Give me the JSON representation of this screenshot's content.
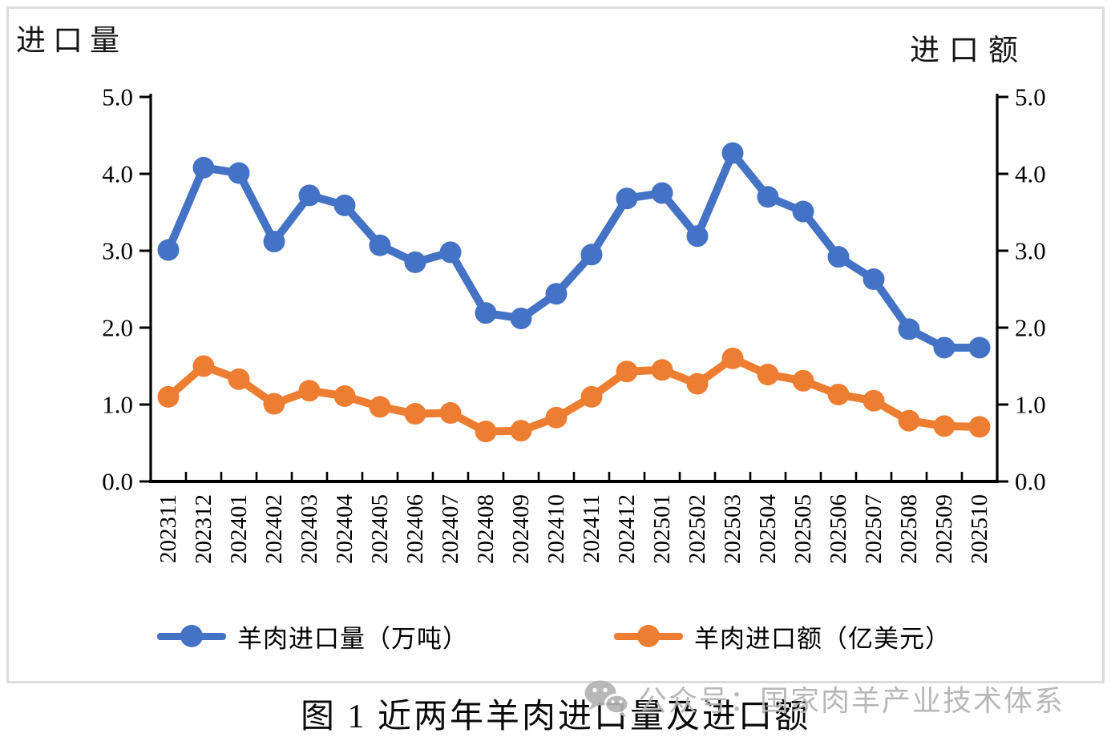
{
  "page": {
    "caption": "图 1 近两年羊肉进口量及进口额",
    "watermark_text": "公众号：国家肉羊产业技术体系",
    "watermark_icon": "wechat-icon"
  },
  "colors": {
    "volume_series": "#4472C4",
    "value_series": "#ED7D31",
    "axis": "#000000",
    "frame_border": "#dcdcdc",
    "watermark": "#b3b3b3",
    "text": "#161616"
  },
  "chart_data": {
    "type": "line",
    "title": "图 1 近两年羊肉进口量及进口额",
    "categories": [
      "202311",
      "202312",
      "202401",
      "202402",
      "202403",
      "202404",
      "202405",
      "202406",
      "202407",
      "202408",
      "202409",
      "202410",
      "202411",
      "202412",
      "202501",
      "202502",
      "202503",
      "202504",
      "202505",
      "202506",
      "202507",
      "202508",
      "202509",
      "202510"
    ],
    "series": [
      {
        "id": "volume",
        "name": "羊肉进口量（万吨）",
        "axis": "left",
        "color": "#4472C4",
        "values": [
          3.01,
          4.08,
          4.01,
          3.12,
          3.72,
          3.59,
          3.07,
          2.85,
          2.98,
          2.19,
          2.12,
          2.44,
          2.95,
          3.68,
          3.75,
          3.19,
          4.27,
          3.7,
          3.51,
          2.92,
          2.63,
          1.98,
          1.74,
          1.74
        ]
      },
      {
        "id": "value",
        "name": "羊肉进口额（亿美元）",
        "axis": "right",
        "color": "#ED7D31",
        "values": [
          1.1,
          1.5,
          1.33,
          1.01,
          1.18,
          1.11,
          0.97,
          0.88,
          0.89,
          0.65,
          0.66,
          0.83,
          1.1,
          1.43,
          1.45,
          1.27,
          1.6,
          1.39,
          1.31,
          1.13,
          1.05,
          0.79,
          0.72,
          0.71
        ]
      }
    ],
    "left_axis": {
      "title": "进口量",
      "min": 0,
      "max": 5,
      "tick_step": 1,
      "tick_labels": [
        "0.0",
        "1.0",
        "2.0",
        "3.0",
        "4.0",
        "5.0"
      ]
    },
    "right_axis": {
      "title": "进口额",
      "min": 0,
      "max": 5,
      "tick_step": 1,
      "tick_labels": [
        "0.0",
        "1.0",
        "2.0",
        "3.0",
        "4.0",
        "5.0"
      ]
    },
    "grid": false,
    "legend_position": "bottom"
  }
}
